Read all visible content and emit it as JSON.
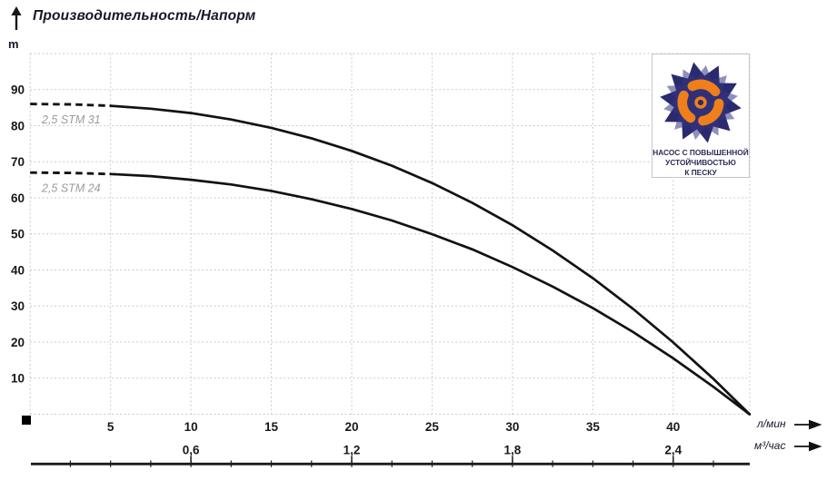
{
  "title": "Производительность/Напорм",
  "y_unit": "m",
  "icons": {
    "up_arrow": "↑",
    "right_arrow": "→"
  },
  "colors": {
    "curve": "#121212",
    "grid": "#c7c7c7",
    "series_label": "#9b9b9b",
    "badge_navy": "#2a2a6e",
    "badge_orange": "#ef7f1a",
    "text": "#17172b"
  },
  "badge": {
    "line1": "НАСОС С ПОВЫШЕННОЙ",
    "line2": "УСТОЙЧИВОСТЬЮ",
    "line3": "К ПЕСКУ"
  },
  "chart_data": {
    "type": "line",
    "title": "Производительность/Напорм",
    "ylabel": "m",
    "ylim": [
      0,
      100
    ],
    "xlim": [
      0,
      44.75
    ],
    "grid": true,
    "yticks": [
      10,
      20,
      30,
      40,
      50,
      60,
      70,
      80,
      90
    ],
    "x_axis_primary": {
      "unit": "л/мин",
      "ticks": [
        5,
        10,
        15,
        20,
        25,
        30,
        35,
        40
      ]
    },
    "x_axis_secondary": {
      "unit": "м³/час",
      "ticks": [
        {
          "label": "0,6",
          "q": 10
        },
        {
          "label": "1,2",
          "q": 20
        },
        {
          "label": "1,8",
          "q": 30
        },
        {
          "label": "2,4",
          "q": 40
        }
      ]
    },
    "x": [
      0,
      2.5,
      5,
      7.5,
      10,
      12.5,
      15,
      17.5,
      20,
      22.5,
      25,
      27.5,
      30,
      32.5,
      35,
      37.5,
      40,
      42.5,
      44.75
    ],
    "series": [
      {
        "name": "2,5 STM 31",
        "values": [
          86,
          85.9,
          85.5,
          84.7,
          83.5,
          81.7,
          79.4,
          76.5,
          73.0,
          68.9,
          64.1,
          58.6,
          52.4,
          45.4,
          37.7,
          29.2,
          19.9,
          9.8,
          0
        ]
      },
      {
        "name": "2,5 STM 24",
        "values": [
          67,
          66.9,
          66.6,
          66.0,
          65.0,
          63.7,
          61.9,
          59.6,
          56.9,
          53.7,
          49.9,
          45.7,
          40.8,
          35.4,
          29.4,
          22.8,
          15.5,
          7.6,
          0
        ]
      }
    ],
    "dashed_until_x": 5
  }
}
